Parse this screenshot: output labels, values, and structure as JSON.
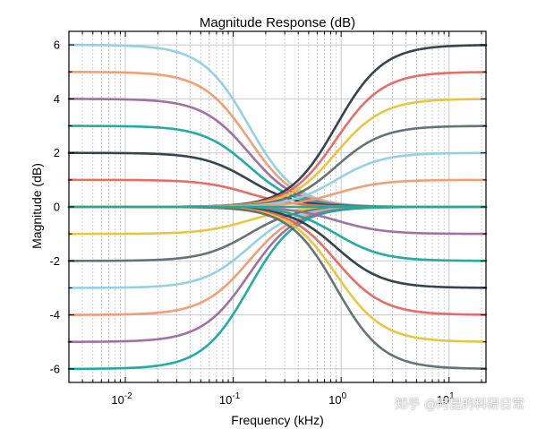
{
  "chart_data": {
    "type": "line",
    "title": "Magnitude Response (dB)",
    "xlabel": "Frequency (kHz)",
    "ylabel": "Magnitude (dB)",
    "xscale": "log",
    "xlim": [
      0.003,
      22
    ],
    "ylim": [
      -6.5,
      6.5
    ],
    "xticks": [
      0.01,
      0.1,
      1,
      10
    ],
    "xtick_labels": [
      {
        "base": "10",
        "exp": "-2"
      },
      {
        "base": "10",
        "exp": "-1"
      },
      {
        "base": "10",
        "exp": "0"
      },
      {
        "base": "10",
        "exp": "1"
      }
    ],
    "yticks": [
      -6,
      -4,
      -2,
      0,
      2,
      4,
      6
    ],
    "ytick_labels": [
      "-6",
      "-4",
      "-2",
      "0",
      "2",
      "4",
      "6"
    ],
    "grid": true,
    "minor_grid": true,
    "low_shelf_corner_khz": 0.14,
    "high_shelf_corner_khz": 0.9,
    "series": [
      {
        "shelf": "low",
        "gain_db": 6,
        "color": "#8ecfe2"
      },
      {
        "shelf": "low",
        "gain_db": 5,
        "color": "#ef9a70"
      },
      {
        "shelf": "low",
        "gain_db": 4,
        "color": "#9b6a9e"
      },
      {
        "shelf": "low",
        "gain_db": 3,
        "color": "#17a89e"
      },
      {
        "shelf": "low",
        "gain_db": 2,
        "color": "#2c3a42"
      },
      {
        "shelf": "low",
        "gain_db": 1,
        "color": "#e46562"
      },
      {
        "shelf": "low",
        "gain_db": 0,
        "color": "#e8c23a"
      },
      {
        "shelf": "low",
        "gain_db": -1,
        "color": "#e8c23a"
      },
      {
        "shelf": "low",
        "gain_db": -2,
        "color": "#5e6b70"
      },
      {
        "shelf": "low",
        "gain_db": -3,
        "color": "#8ecfe2"
      },
      {
        "shelf": "low",
        "gain_db": -4,
        "color": "#ef9a70"
      },
      {
        "shelf": "low",
        "gain_db": -5,
        "color": "#9b6a9e"
      },
      {
        "shelf": "low",
        "gain_db": -6,
        "color": "#17a89e"
      },
      {
        "shelf": "high",
        "gain_db": 6,
        "color": "#2c3a42"
      },
      {
        "shelf": "high",
        "gain_db": 5,
        "color": "#e46562"
      },
      {
        "shelf": "high",
        "gain_db": 4,
        "color": "#e8c23a"
      },
      {
        "shelf": "high",
        "gain_db": 3,
        "color": "#5e6b70"
      },
      {
        "shelf": "high",
        "gain_db": 2,
        "color": "#8ecfe2"
      },
      {
        "shelf": "high",
        "gain_db": 1,
        "color": "#ef9a70"
      },
      {
        "shelf": "high",
        "gain_db": 0,
        "color": "#17a89e"
      },
      {
        "shelf": "high",
        "gain_db": -1,
        "color": "#9b6a9e"
      },
      {
        "shelf": "high",
        "gain_db": -2,
        "color": "#17a89e"
      },
      {
        "shelf": "high",
        "gain_db": -3,
        "color": "#2c3a42"
      },
      {
        "shelf": "high",
        "gain_db": -4,
        "color": "#e46562"
      },
      {
        "shelf": "high",
        "gain_db": -5,
        "color": "#e8c23a"
      },
      {
        "shelf": "high",
        "gain_db": -6,
        "color": "#5e6b70"
      }
    ]
  },
  "watermark": {
    "text": "知乎 @阿昆的科研日常"
  }
}
